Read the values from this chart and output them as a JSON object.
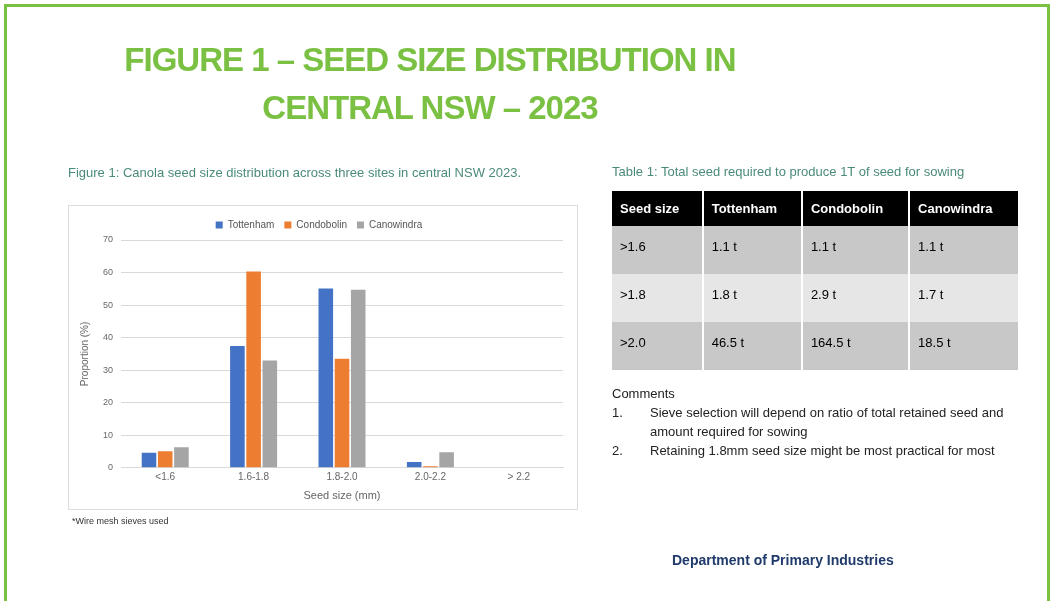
{
  "chart_data": [
    {
      "type": "bar",
      "title": "FIGURE 1 – SEED SIZE DISTRIBUTION IN CENTRAL NSW – 2023",
      "subtitle": "Figure 1: Canola seed size distribution across three sites in central NSW 2023.",
      "xlabel": "Seed size (mm)",
      "ylabel": "Proportion (%)",
      "categories": [
        "<1.6",
        "1.6-1.8",
        "1.8-2.0",
        "2.0-2.2",
        "> 2.2"
      ],
      "series": [
        {
          "name": "Tottenham",
          "color": "#4472c4",
          "values": [
            4.6,
            37.4,
            55.1,
            1.8,
            0
          ]
        },
        {
          "name": "Condobolin",
          "color": "#ed7d31",
          "values": [
            5.1,
            60.3,
            33.5,
            0.5,
            0
          ]
        },
        {
          "name": "Canowindra",
          "color": "#a5a5a5",
          "values": [
            6.3,
            33.0,
            54.7,
            4.8,
            0
          ]
        }
      ],
      "ylim": [
        0,
        70
      ],
      "yticks": [
        0,
        10,
        20,
        30,
        40,
        50,
        60,
        70
      ],
      "grid": "y",
      "legend": "top",
      "annotations": [
        "*Wire mesh sieves used",
        "Department of Primary Industries"
      ]
    },
    {
      "type": "other",
      "title": "Table 1: Total seed required to produce 1T of seed for sowing",
      "categories": [
        "Seed size",
        "Tottenham",
        "Condobolin",
        "Canowindra"
      ],
      "y_categories": [
        ">1.6",
        ">1.8",
        ">2.0"
      ],
      "cell_labels": [
        [
          "1.1 t",
          "1.1 t",
          "1.1 t"
        ],
        [
          "1.8 t",
          "2.9 t",
          "1.7 t"
        ],
        [
          "46.5 t",
          "164.5 t",
          "18.5 t"
        ]
      ],
      "annotations": [
        "Comments",
        "1.\tSieve selection will depend on ratio of total retained seed and amount required for sowing",
        "2.\tRetaining 1.8mm seed size might be most practical for most"
      ]
    }
  ]
}
